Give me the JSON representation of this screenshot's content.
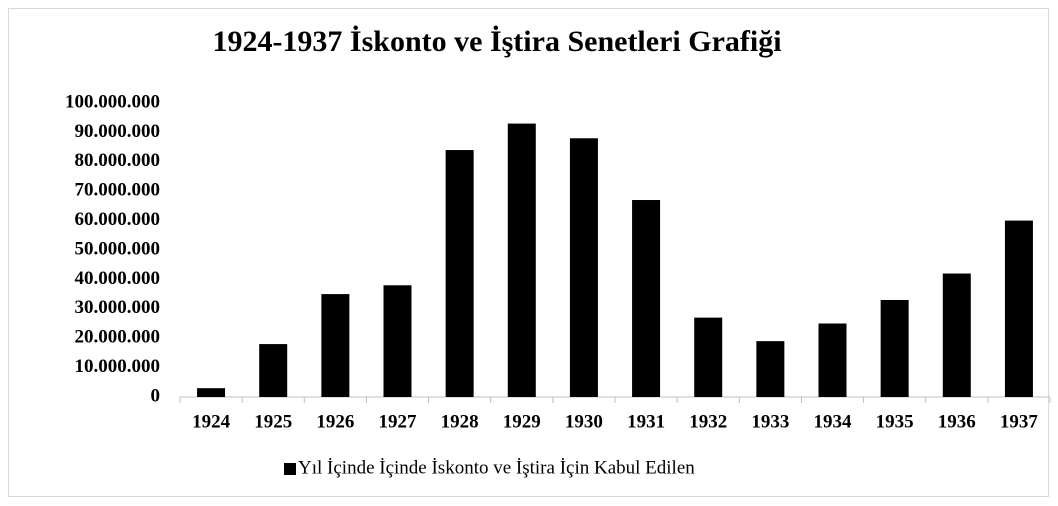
{
  "chart_data": {
    "type": "bar",
    "title": "1924-1937 İskonto ve İştira Senetleri Grafiği",
    "categories": [
      "1924",
      "1925",
      "1926",
      "1927",
      "1928",
      "1929",
      "1930",
      "1931",
      "1932",
      "1933",
      "1934",
      "1935",
      "1936",
      "1937"
    ],
    "series": [
      {
        "name": "Yıl İçinde İçinde İskonto ve İştira İçin Kabul Edilen",
        "color": "#000000",
        "values": [
          3000000,
          18000000,
          35000000,
          38000000,
          84000000,
          93000000,
          88000000,
          67000000,
          27000000,
          19000000,
          25000000,
          33000000,
          42000000,
          60000000
        ]
      }
    ],
    "ylim": [
      0,
      100000000
    ],
    "yticks": [
      0,
      {
        "value": 10000000,
        "label": "10.000.000"
      },
      {
        "value": 20000000,
        "label": "20.000.000"
      },
      {
        "value": 30000000,
        "label": "30.000.000"
      },
      {
        "value": 40000000,
        "label": "40.000.000"
      },
      {
        "value": 50000000,
        "label": "50.000.000"
      },
      {
        "value": 60000000,
        "label": "60.000.000"
      },
      {
        "value": 70000000,
        "label": "70.000.000"
      },
      {
        "value": 80000000,
        "label": "80.000.000"
      },
      {
        "value": 90000000,
        "label": "90.000.000"
      },
      {
        "value": 100000000,
        "label": "100.000.000"
      }
    ],
    "grid": false,
    "legend": "bottom"
  }
}
